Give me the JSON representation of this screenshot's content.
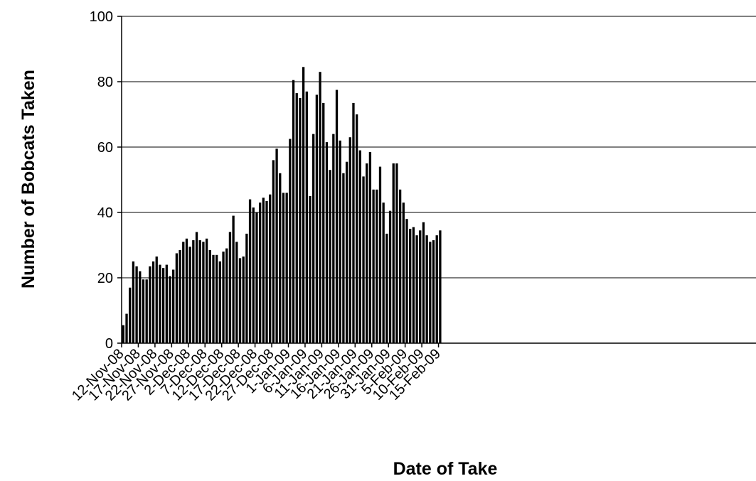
{
  "chart_data": {
    "type": "bar",
    "title": "",
    "xlabel": "Date of Take",
    "ylabel": "Number of Bobcats Taken",
    "ylim": [
      0,
      100
    ],
    "yticks": [
      0,
      20,
      40,
      60,
      80,
      100
    ],
    "grid": "horizontal",
    "legend": "none",
    "bar_color": "#000000",
    "x_tick_labels": [
      "12-Nov-08",
      "17-Nov-08",
      "22-Nov-08",
      "27-Nov-08",
      "2-Dec-08",
      "7-Dec-08",
      "12-Dec-08",
      "17-Dec-08",
      "22-Dec-08",
      "27-Dec-08",
      "1-Jan-09",
      "6-Jan-09",
      "11-Jan-09",
      "16-Jan-09",
      "21-Jan-09",
      "26-Jan-09",
      "31-Jan-09",
      "5-Feb-09",
      "10-Feb-09",
      "15-Feb-09"
    ],
    "series": [
      {
        "values": [
          5.5,
          9,
          17,
          25,
          23.5,
          22,
          19.5,
          19.5,
          23.5,
          25,
          26.5,
          24,
          23,
          24,
          20.5,
          22.5,
          27.5,
          28.5,
          31,
          32,
          29.5,
          31.5,
          34,
          31.5,
          31,
          32,
          28.5,
          27,
          27,
          25,
          28,
          29,
          34,
          39,
          31,
          26,
          26.5,
          33.5,
          44,
          41.5,
          40,
          43,
          44.5,
          43.5,
          45.5,
          56,
          59.5,
          52,
          46,
          46,
          62.5,
          80.5,
          76.5,
          75,
          84.5,
          77,
          45,
          64,
          76,
          83,
          73.5,
          61.5,
          53,
          64,
          77.5,
          62,
          52,
          55.5,
          63,
          73.5,
          70,
          59,
          51,
          55,
          58.5,
          47,
          47,
          54,
          43,
          33.5,
          40.5,
          55,
          55,
          47,
          43,
          38,
          35,
          35.5,
          33,
          34.5,
          37,
          33,
          31,
          31.5,
          33,
          34.5
        ]
      }
    ]
  }
}
